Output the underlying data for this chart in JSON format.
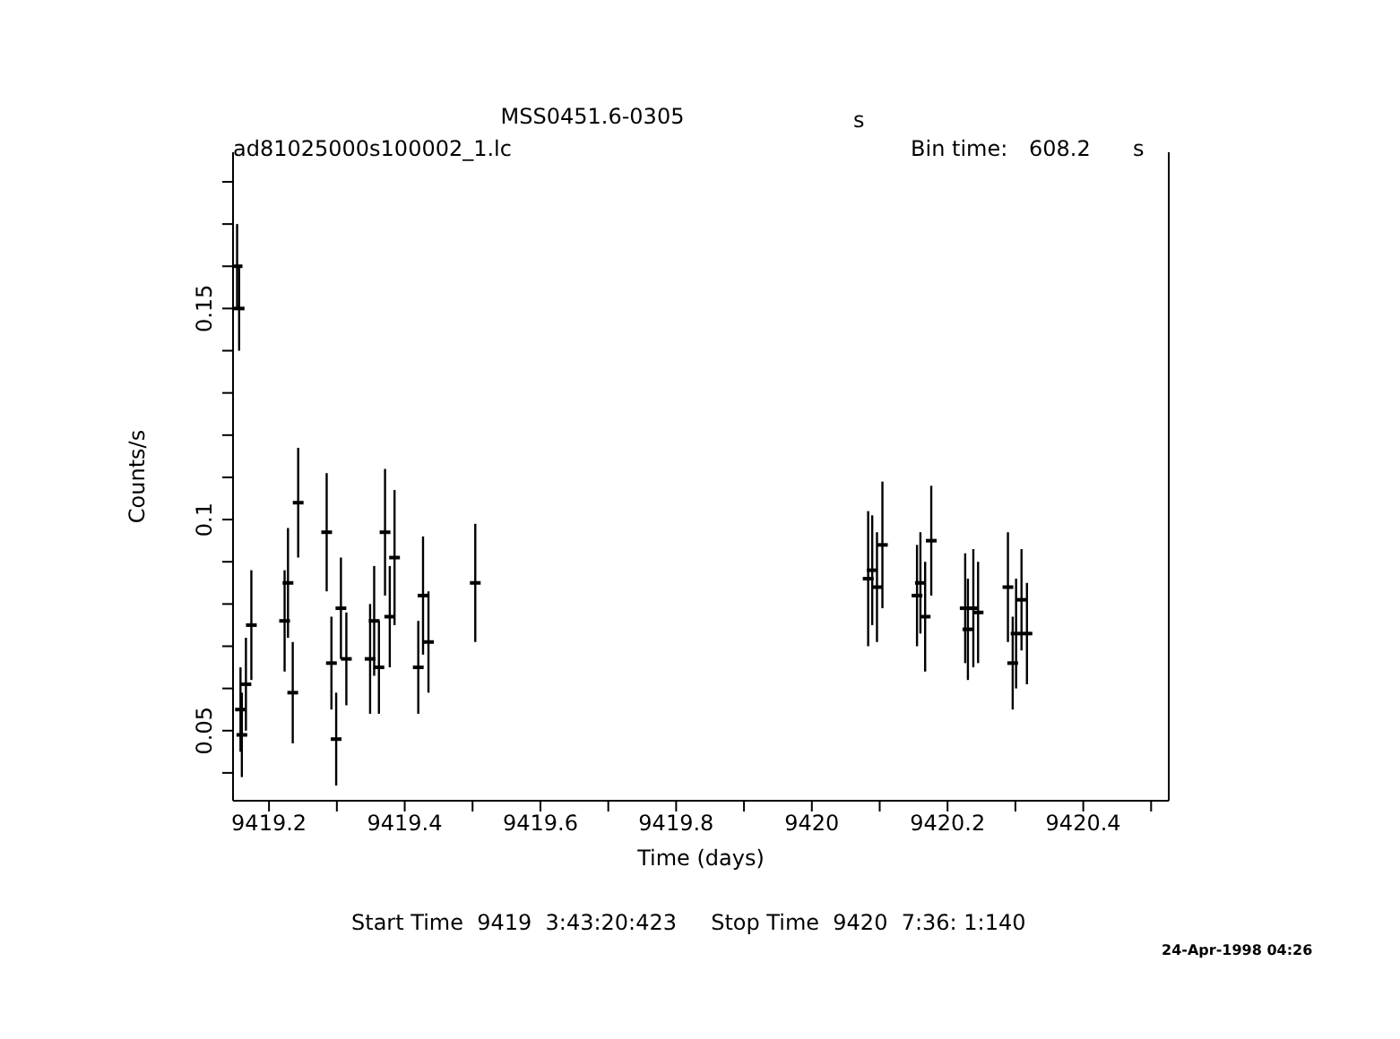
{
  "chart_data": {
    "type": "scatter",
    "title": "MSS0451.6-0305",
    "xlabel": "Time (days)",
    "ylabel": "Counts/s",
    "annotations": [
      "s",
      "ad81025000s100002_1.lc",
      "Bin time:",
      "608.2",
      "s",
      "Start Time  9419  3:43:20:423     Stop Time  9420  7:36: 1:140",
      "24-Apr-1998 04:26"
    ],
    "x": [
      9419.153,
      9419.156,
      9419.158,
      9419.16,
      9419.166,
      9419.174,
      9419.223,
      9419.228,
      9419.235,
      9419.243,
      9419.285,
      9419.292,
      9419.299,
      9419.306,
      9419.314,
      9419.349,
      9419.355,
      9419.362,
      9419.371,
      9419.378,
      9419.385,
      9419.42,
      9419.427,
      9419.435,
      9419.504,
      9420.083,
      9420.089,
      9420.096,
      9420.104,
      9420.155,
      9420.16,
      9420.167,
      9420.176,
      9420.226,
      9420.23,
      9420.238,
      9420.245,
      9420.289,
      9420.296,
      9420.301,
      9420.309,
      9420.317
    ],
    "series": [
      {
        "color": "#000000",
        "values": [
          0.16,
          0.15,
          0.055,
          0.049,
          0.061,
          0.075,
          0.076,
          0.085,
          0.059,
          0.104,
          0.097,
          0.066,
          0.048,
          0.079,
          0.067,
          0.067,
          0.076,
          0.065,
          0.097,
          0.077,
          0.091,
          0.065,
          0.082,
          0.071,
          0.085,
          0.086,
          0.088,
          0.084,
          0.094,
          0.082,
          0.085,
          0.077,
          0.095,
          0.079,
          0.074,
          0.079,
          0.078,
          0.084,
          0.066,
          0.073,
          0.081,
          0.073
        ],
        "errors": [
          0.01,
          0.01,
          0.01,
          0.01,
          0.011,
          0.013,
          0.012,
          0.013,
          0.012,
          0.013,
          0.014,
          0.011,
          0.011,
          0.012,
          0.011,
          0.013,
          0.013,
          0.011,
          0.015,
          0.012,
          0.016,
          0.011,
          0.014,
          0.012,
          0.014,
          0.016,
          0.013,
          0.013,
          0.015,
          0.012,
          0.012,
          0.013,
          0.013,
          0.013,
          0.012,
          0.014,
          0.012,
          0.013,
          0.011,
          0.013,
          0.012,
          0.012
        ]
      }
    ],
    "xlim": [
      9419.147,
      9420.526
    ],
    "xticks": [
      9419.2,
      {
        "value": 9419.3,
        "label": null
      },
      9419.4,
      {
        "value": 9419.5,
        "label": null
      },
      9419.6,
      {
        "value": 9419.7,
        "label": null
      },
      9419.8,
      {
        "value": 9419.9,
        "label": null
      },
      9420,
      {
        "value": 9420.1,
        "label": null
      },
      9420.2,
      {
        "value": 9420.3,
        "label": null
      },
      9420.4,
      {
        "value": 9420.5,
        "label": null
      }
    ],
    "ylim": [
      0.0334,
      0.187
    ],
    "yticks": [
      {
        "value": 0.04,
        "label": null
      },
      0.05,
      {
        "value": 0.06,
        "label": null
      },
      {
        "value": 0.07,
        "label": null
      },
      {
        "value": 0.08,
        "label": null
      },
      {
        "value": 0.09,
        "label": null
      },
      0.1,
      {
        "value": 0.11,
        "label": null
      },
      {
        "value": 0.12,
        "label": null
      },
      {
        "value": 0.13,
        "label": null
      },
      {
        "value": 0.14,
        "label": null
      },
      0.15,
      {
        "value": 0.16,
        "label": null
      },
      {
        "value": 0.17,
        "label": null
      },
      {
        "value": 0.18,
        "label": null
      }
    ],
    "grid": false,
    "legend": false
  }
}
